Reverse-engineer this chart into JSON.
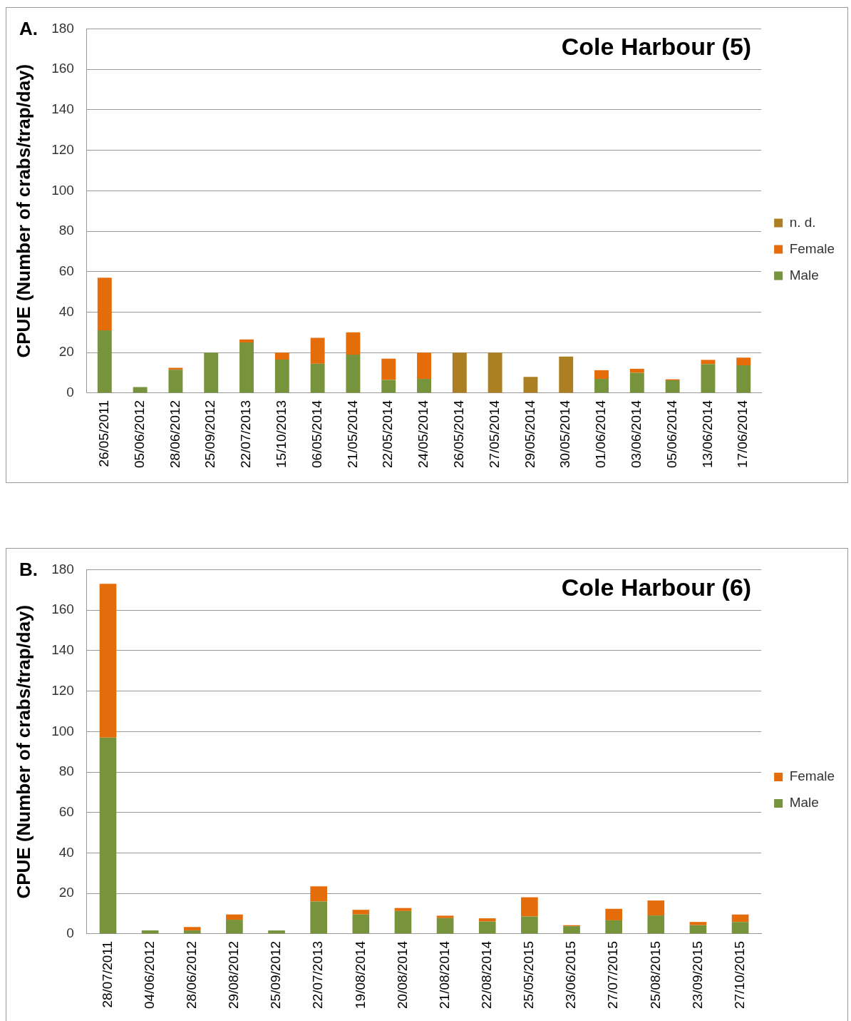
{
  "chart_data": [
    {
      "type": "bar",
      "stacked": true,
      "title": "Cole Harbour (5)",
      "ylabel": "CPUE (Number of crabs/trap/day)",
      "annotations": [
        "A."
      ],
      "categories": [
        "26/05/2011",
        "05/06/2012",
        "28/06/2012",
        "25/09/2012",
        "22/07/2013",
        "15/10/2013",
        "06/05/2014",
        "21/05/2014",
        "22/05/2014",
        "24/05/2014",
        "26/05/2014",
        "27/05/2014",
        "29/05/2014",
        "30/05/2014",
        "01/06/2014",
        "03/06/2014",
        "05/06/2014",
        "13/06/2014",
        "17/06/2014"
      ],
      "series": [
        {
          "name": "Male",
          "color": "#77933c",
          "values": [
            31,
            3,
            11.5,
            20,
            25,
            16.5,
            14.5,
            19,
            6.5,
            7,
            null,
            null,
            null,
            null,
            7,
            10,
            6.3,
            14.3,
            13.7
          ]
        },
        {
          "name": "Female",
          "color": "#e46c0a",
          "values": [
            26,
            0,
            1,
            0,
            1.5,
            3.5,
            12.8,
            11,
            10.5,
            13,
            null,
            null,
            null,
            null,
            4.3,
            2,
            0.5,
            2.1,
            3.8
          ]
        },
        {
          "name": "n. d.",
          "color": "#ad7f23",
          "values": [
            null,
            null,
            null,
            null,
            null,
            null,
            null,
            null,
            null,
            null,
            20,
            20,
            8,
            18,
            null,
            null,
            null,
            null,
            null
          ]
        }
      ],
      "ylim": [
        0,
        180
      ],
      "yticks": [
        0,
        20,
        40,
        60,
        80,
        100,
        120,
        140,
        160,
        180
      ],
      "grid": "y",
      "legend": "right"
    },
    {
      "type": "bar",
      "stacked": true,
      "title": "Cole Harbour (6)",
      "ylabel": "CPUE (Number of crabs/trap/day)",
      "annotations": [
        "B."
      ],
      "categories": [
        "28/07/2011",
        "04/06/2012",
        "28/06/2012",
        "29/08/2012",
        "25/09/2012",
        "22/07/2013",
        "19/08/2014",
        "20/08/2014",
        "21/08/2014",
        "22/08/2014",
        "25/05/2015",
        "23/06/2015",
        "27/07/2015",
        "25/08/2015",
        "23/09/2015",
        "27/10/2015"
      ],
      "series": [
        {
          "name": "Male",
          "color": "#77933c",
          "values": [
            97,
            1.7,
            1.7,
            7,
            1.7,
            16,
            9.6,
            11.3,
            7.8,
            6.1,
            8.6,
            3.8,
            6.7,
            9.1,
            4.3,
            5.9
          ]
        },
        {
          "name": "Female",
          "color": "#e46c0a",
          "values": [
            76,
            0,
            1.7,
            2.6,
            0,
            7.5,
            2.3,
            1.5,
            1.2,
            1.6,
            9.5,
            0.5,
            5.7,
            7.4,
            1.6,
            3.7
          ]
        }
      ],
      "ylim": [
        0,
        180
      ],
      "yticks": [
        0,
        20,
        40,
        60,
        80,
        100,
        120,
        140,
        160,
        180
      ],
      "grid": "y",
      "legend": "right"
    }
  ]
}
